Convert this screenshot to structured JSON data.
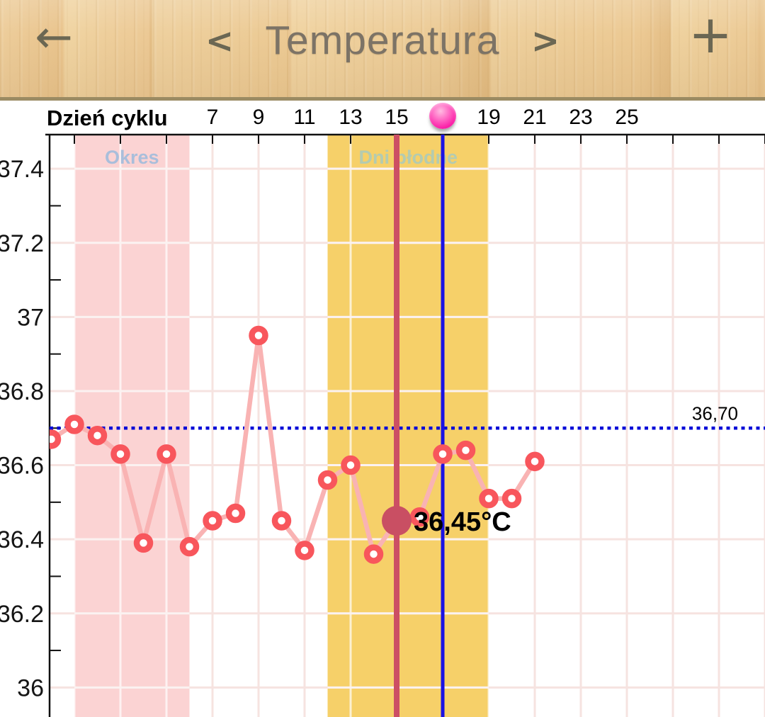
{
  "header": {
    "title": "Temperatura",
    "back_icon": "←",
    "prev_icon": "<",
    "next_icon": ">",
    "add_icon": "+"
  },
  "day_axis": {
    "label": "Dzień cyklu",
    "visible_days": [
      7,
      9,
      11,
      13,
      15,
      19,
      21,
      23,
      25
    ],
    "ovulation_day": 17
  },
  "chart_data": {
    "type": "line",
    "title": "Temperatura",
    "xlabel": "Dzień cyklu",
    "ylabel": "°C",
    "ylim": [
      35.95,
      37.55
    ],
    "yticks": [
      36,
      36.2,
      36.4,
      36.6,
      36.8,
      37,
      37.2,
      37.4
    ],
    "ytick_labels": [
      "36",
      "36.2",
      "36.4",
      "36.6",
      "36.8",
      "37",
      "37.2",
      "37.4"
    ],
    "yticks_minor": [
      36.1,
      36.3,
      36.5,
      36.7,
      36.9,
      37.1,
      37.3
    ],
    "x_day_ticks": [
      7,
      9,
      11,
      13,
      15,
      19,
      21,
      23,
      25
    ],
    "x_gridline_days": [
      1,
      3,
      5,
      7,
      9,
      11,
      13,
      15,
      17,
      19,
      21,
      23,
      25,
      27,
      29,
      31
    ],
    "grid_on": true,
    "legend": "none",
    "series": [
      {
        "name": "temperatura",
        "points": [
          [
            0,
            36.67
          ],
          [
            1,
            36.71
          ],
          [
            2,
            36.68
          ],
          [
            3,
            36.63
          ],
          [
            4,
            36.39
          ],
          [
            5,
            36.63
          ],
          [
            6,
            36.38
          ],
          [
            7,
            36.45
          ],
          [
            8,
            36.47
          ],
          [
            9,
            36.95
          ],
          [
            10,
            36.45
          ],
          [
            11,
            36.37
          ],
          [
            12,
            36.56
          ],
          [
            13,
            36.6
          ],
          [
            14,
            36.36
          ],
          [
            15,
            36.45
          ],
          [
            16,
            36.46
          ],
          [
            17,
            36.63
          ],
          [
            18,
            36.64
          ],
          [
            19,
            36.51
          ],
          [
            20,
            36.51
          ],
          [
            21,
            36.61
          ]
        ]
      }
    ],
    "coverline": {
      "value": 36.7,
      "label": "36,70"
    },
    "selected_point": {
      "day": 15,
      "temp": 36.45,
      "label": "36,45°C"
    },
    "bands": [
      {
        "name": "period-band",
        "label": "Okres",
        "from_day": 1,
        "to_day": 6,
        "fill": "#fbd3d3",
        "label_color": "#a9bedb"
      },
      {
        "name": "fertile-band",
        "label": "Dni płodne",
        "from_day": 12,
        "to_day": 19,
        "fill": "#f6d069",
        "label_color": "#b4cbb0"
      }
    ],
    "vlines": [
      {
        "name": "selected-day-line",
        "day": 15,
        "color": "#cc4f64",
        "width": 8
      },
      {
        "name": "ovulation-day-line",
        "day": 17,
        "color": "#1b12e3",
        "width": 5
      }
    ],
    "colors": {
      "line": "#f9b3b3",
      "marker": "#f8565c",
      "marker_fill": "#ffffff",
      "selected_dot": "#c94f63",
      "coverline": "#0009d8",
      "grid": "#f6e3e0",
      "axis": "#111111",
      "ovulation_ball": "#fb1fa7"
    }
  }
}
